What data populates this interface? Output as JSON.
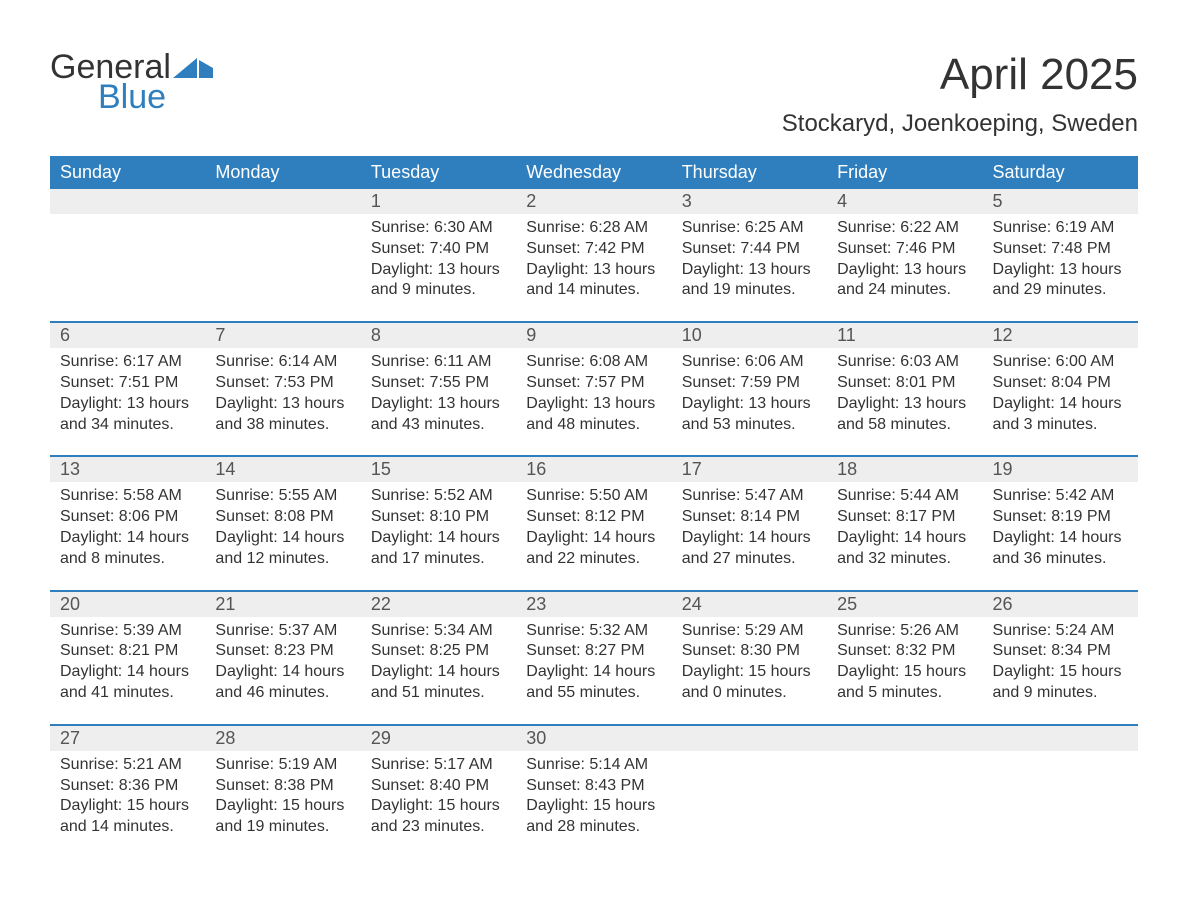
{
  "logo": {
    "word1": "General",
    "word2": "Blue"
  },
  "title": "April 2025",
  "location": "Stockaryd, Joenkoeping, Sweden",
  "colors": {
    "header_bg": "#2f7fbf",
    "header_text": "#ffffff",
    "daynum_bg": "#eeeeee",
    "row_divider": "#2f7fbf",
    "body_text": "#333333",
    "logo_blue": "#2f7fbf",
    "page_bg": "#ffffff"
  },
  "weekdays": [
    "Sunday",
    "Monday",
    "Tuesday",
    "Wednesday",
    "Thursday",
    "Friday",
    "Saturday"
  ],
  "weeks": [
    [
      null,
      null,
      {
        "n": "1",
        "sunrise": "6:30 AM",
        "sunset": "7:40 PM",
        "daylight": "13 hours and 9 minutes."
      },
      {
        "n": "2",
        "sunrise": "6:28 AM",
        "sunset": "7:42 PM",
        "daylight": "13 hours and 14 minutes."
      },
      {
        "n": "3",
        "sunrise": "6:25 AM",
        "sunset": "7:44 PM",
        "daylight": "13 hours and 19 minutes."
      },
      {
        "n": "4",
        "sunrise": "6:22 AM",
        "sunset": "7:46 PM",
        "daylight": "13 hours and 24 minutes."
      },
      {
        "n": "5",
        "sunrise": "6:19 AM",
        "sunset": "7:48 PM",
        "daylight": "13 hours and 29 minutes."
      }
    ],
    [
      {
        "n": "6",
        "sunrise": "6:17 AM",
        "sunset": "7:51 PM",
        "daylight": "13 hours and 34 minutes."
      },
      {
        "n": "7",
        "sunrise": "6:14 AM",
        "sunset": "7:53 PM",
        "daylight": "13 hours and 38 minutes."
      },
      {
        "n": "8",
        "sunrise": "6:11 AM",
        "sunset": "7:55 PM",
        "daylight": "13 hours and 43 minutes."
      },
      {
        "n": "9",
        "sunrise": "6:08 AM",
        "sunset": "7:57 PM",
        "daylight": "13 hours and 48 minutes."
      },
      {
        "n": "10",
        "sunrise": "6:06 AM",
        "sunset": "7:59 PM",
        "daylight": "13 hours and 53 minutes."
      },
      {
        "n": "11",
        "sunrise": "6:03 AM",
        "sunset": "8:01 PM",
        "daylight": "13 hours and 58 minutes."
      },
      {
        "n": "12",
        "sunrise": "6:00 AM",
        "sunset": "8:04 PM",
        "daylight": "14 hours and 3 minutes."
      }
    ],
    [
      {
        "n": "13",
        "sunrise": "5:58 AM",
        "sunset": "8:06 PM",
        "daylight": "14 hours and 8 minutes."
      },
      {
        "n": "14",
        "sunrise": "5:55 AM",
        "sunset": "8:08 PM",
        "daylight": "14 hours and 12 minutes."
      },
      {
        "n": "15",
        "sunrise": "5:52 AM",
        "sunset": "8:10 PM",
        "daylight": "14 hours and 17 minutes."
      },
      {
        "n": "16",
        "sunrise": "5:50 AM",
        "sunset": "8:12 PM",
        "daylight": "14 hours and 22 minutes."
      },
      {
        "n": "17",
        "sunrise": "5:47 AM",
        "sunset": "8:14 PM",
        "daylight": "14 hours and 27 minutes."
      },
      {
        "n": "18",
        "sunrise": "5:44 AM",
        "sunset": "8:17 PM",
        "daylight": "14 hours and 32 minutes."
      },
      {
        "n": "19",
        "sunrise": "5:42 AM",
        "sunset": "8:19 PM",
        "daylight": "14 hours and 36 minutes."
      }
    ],
    [
      {
        "n": "20",
        "sunrise": "5:39 AM",
        "sunset": "8:21 PM",
        "daylight": "14 hours and 41 minutes."
      },
      {
        "n": "21",
        "sunrise": "5:37 AM",
        "sunset": "8:23 PM",
        "daylight": "14 hours and 46 minutes."
      },
      {
        "n": "22",
        "sunrise": "5:34 AM",
        "sunset": "8:25 PM",
        "daylight": "14 hours and 51 minutes."
      },
      {
        "n": "23",
        "sunrise": "5:32 AM",
        "sunset": "8:27 PM",
        "daylight": "14 hours and 55 minutes."
      },
      {
        "n": "24",
        "sunrise": "5:29 AM",
        "sunset": "8:30 PM",
        "daylight": "15 hours and 0 minutes."
      },
      {
        "n": "25",
        "sunrise": "5:26 AM",
        "sunset": "8:32 PM",
        "daylight": "15 hours and 5 minutes."
      },
      {
        "n": "26",
        "sunrise": "5:24 AM",
        "sunset": "8:34 PM",
        "daylight": "15 hours and 9 minutes."
      }
    ],
    [
      {
        "n": "27",
        "sunrise": "5:21 AM",
        "sunset": "8:36 PM",
        "daylight": "15 hours and 14 minutes."
      },
      {
        "n": "28",
        "sunrise": "5:19 AM",
        "sunset": "8:38 PM",
        "daylight": "15 hours and 19 minutes."
      },
      {
        "n": "29",
        "sunrise": "5:17 AM",
        "sunset": "8:40 PM",
        "daylight": "15 hours and 23 minutes."
      },
      {
        "n": "30",
        "sunrise": "5:14 AM",
        "sunset": "8:43 PM",
        "daylight": "15 hours and 28 minutes."
      },
      null,
      null,
      null
    ]
  ],
  "labels": {
    "sunrise": "Sunrise: ",
    "sunset": "Sunset: ",
    "daylight": "Daylight: "
  }
}
